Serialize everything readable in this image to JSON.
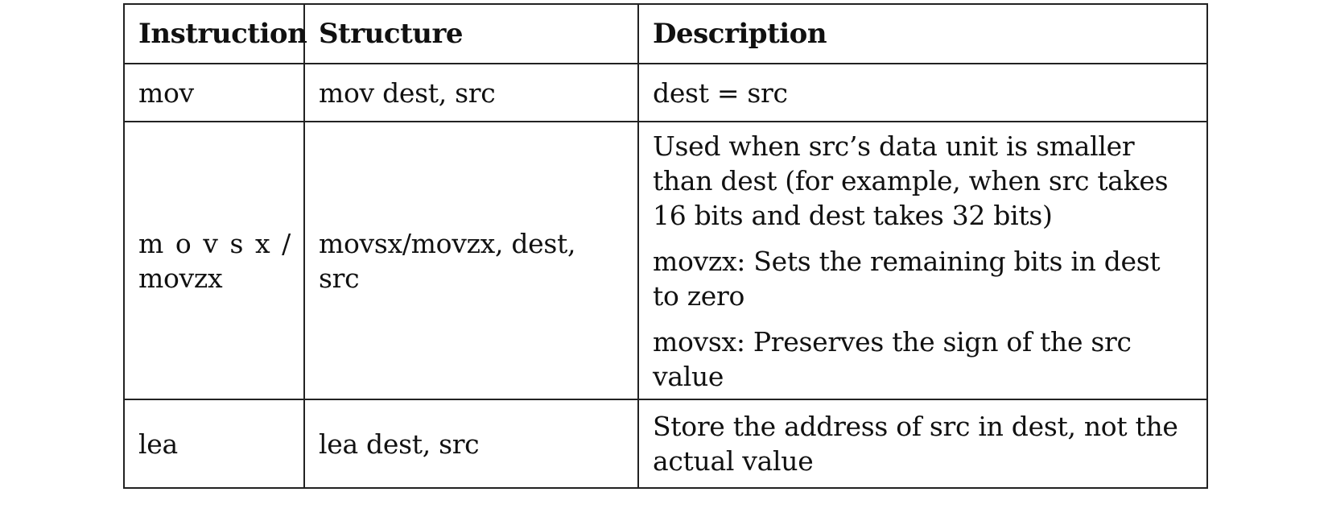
{
  "table": {
    "headers": {
      "instruction": "Instruction",
      "structure": "Structure",
      "description": "Description"
    },
    "rows": [
      {
        "instruction": "mov",
        "structure": "mov dest, src",
        "description": [
          "dest = src"
        ]
      },
      {
        "instruction_line1": "m o v s x /",
        "instruction_line2": "movzx",
        "structure_line1": "movsx/movzx, dest,",
        "structure_line2": "src",
        "description": [
          "Used when src’s data unit is smaller than dest (for example, when src takes 16 bits and dest takes 32 bits)",
          "movzx: Sets the remaining bits in dest to zero",
          "movsx: Preserves the sign of the src value"
        ]
      },
      {
        "instruction": "lea",
        "structure": "lea dest, src",
        "description": [
          "Store the address of src in dest, not the actual value"
        ]
      }
    ]
  }
}
